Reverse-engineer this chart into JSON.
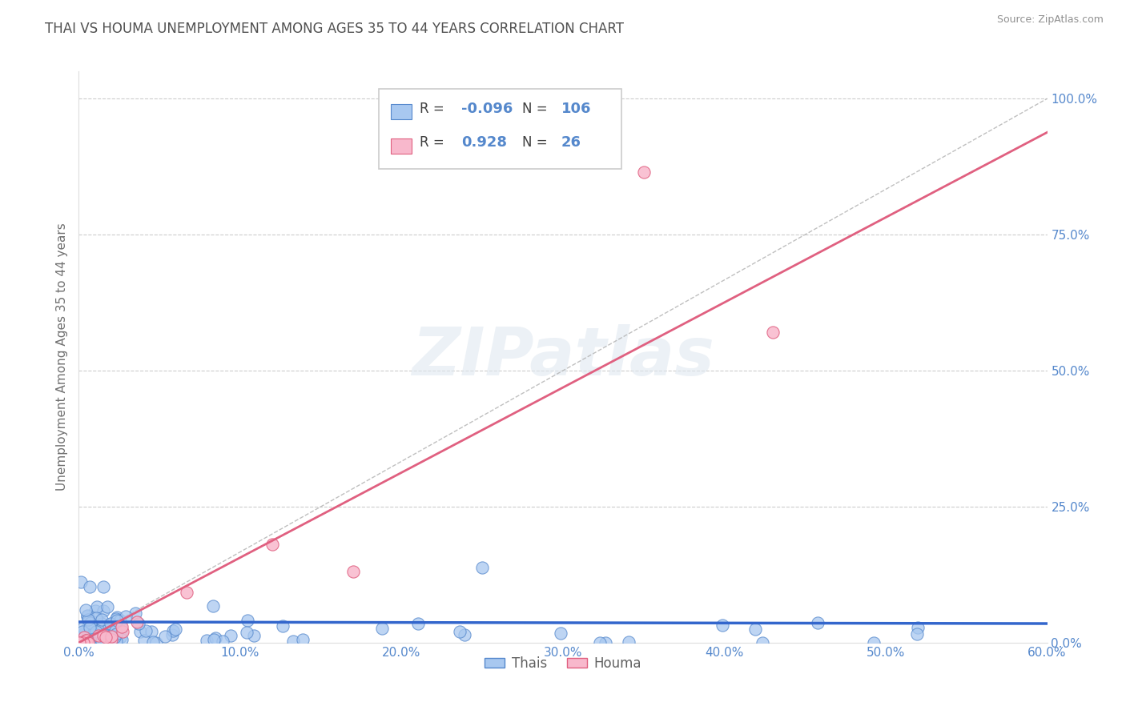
{
  "title": "THAI VS HOUMA UNEMPLOYMENT AMONG AGES 35 TO 44 YEARS CORRELATION CHART",
  "source": "Source: ZipAtlas.com",
  "ylabel": "Unemployment Among Ages 35 to 44 years",
  "xlim": [
    0.0,
    0.6
  ],
  "ylim": [
    0.0,
    1.05
  ],
  "yticks": [
    0.0,
    0.25,
    0.5,
    0.75,
    1.0
  ],
  "ytick_labels": [
    "0.0%",
    "25.0%",
    "50.0%",
    "75.0%",
    "100.0%"
  ],
  "xticks": [
    0.0,
    0.1,
    0.2,
    0.3,
    0.4,
    0.5,
    0.6
  ],
  "xtick_labels": [
    "0.0%",
    "10.0%",
    "20.0%",
    "30.0%",
    "40.0%",
    "50.0%",
    "60.0%"
  ],
  "thai_color": "#a8c8f0",
  "thai_edge_color": "#5588cc",
  "houma_color": "#f8b8cc",
  "houma_edge_color": "#e06080",
  "thai_line_color": "#3366cc",
  "houma_line_color": "#e06080",
  "diag_line_color": "#b0b0b0",
  "R_thai": -0.096,
  "N_thai": 106,
  "R_houma": 0.928,
  "N_houma": 26,
  "watermark": "ZIPatlas",
  "background_color": "#ffffff",
  "title_color": "#505050",
  "tick_color": "#5588cc",
  "legend_color": "#5588cc",
  "thai_slope": -0.005,
  "thai_intercept": 0.038,
  "houma_slope": 1.58,
  "houma_intercept": -0.01
}
